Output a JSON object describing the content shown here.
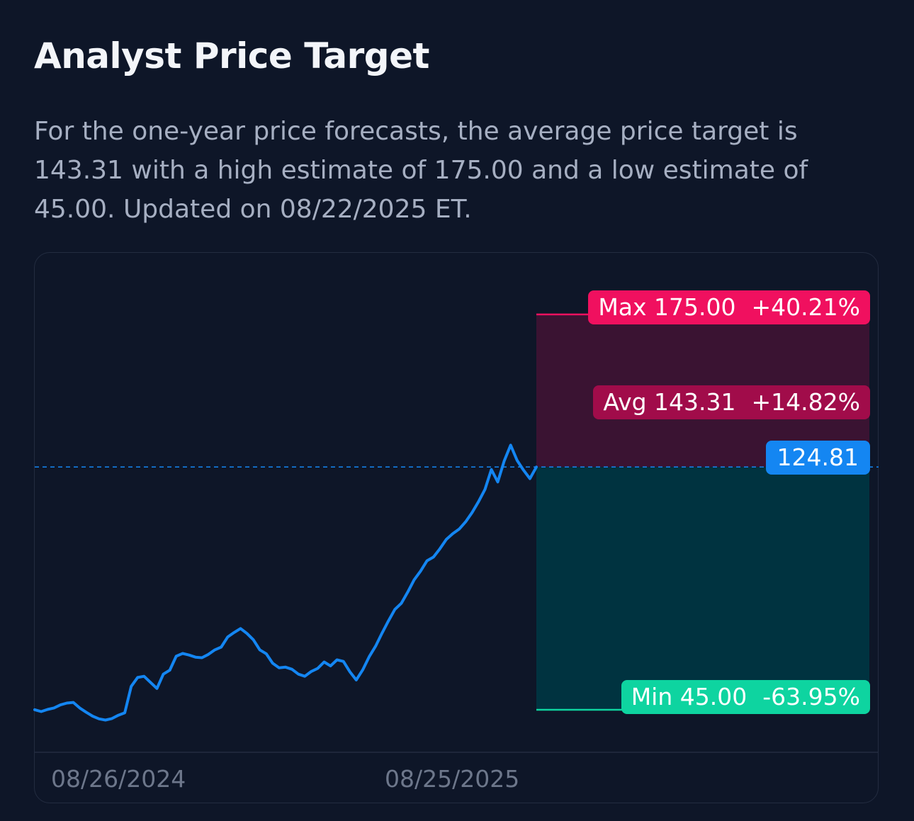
{
  "header": {
    "title": "Analyst Price Target",
    "description": "For the one-year price forecasts, the average price target is 143.31 with a high estimate of 175.00 and a low estimate of 45.00. Updated on 08/22/2025 ET."
  },
  "chart_data": {
    "type": "line",
    "x_ticks": [
      "08/26/2024",
      "08/25/2025"
    ],
    "current_price": "124.81",
    "targets": {
      "max": {
        "label": "Max",
        "value": "175.00",
        "change": "+40.21%"
      },
      "avg": {
        "label": "Avg",
        "value": "143.31",
        "change": "+14.82%"
      },
      "min": {
        "label": "Min",
        "value": "45.00",
        "change": "-63.95%"
      }
    },
    "ylim": [
      38,
      188
    ],
    "series": [
      {
        "values": [
          45.0,
          44.4,
          45.1,
          45.6,
          46.6,
          47.2,
          47.4,
          45.6,
          44.2,
          42.9,
          42.0,
          41.6,
          42.1,
          43.2,
          44.0,
          52.7,
          55.6,
          56.0,
          54.0,
          52.0,
          56.7,
          58.0,
          62.6,
          63.5,
          63.0,
          62.3,
          62.1,
          63.2,
          64.7,
          65.6,
          68.9,
          70.4,
          71.7,
          70.1,
          68.0,
          64.7,
          63.4,
          60.3,
          58.8,
          59.0,
          58.3,
          56.7,
          56.0,
          57.6,
          58.6,
          60.7,
          59.4,
          61.4,
          60.9,
          57.5,
          54.8,
          58.1,
          62.4,
          65.9,
          70.2,
          74.2,
          78.0,
          80.0,
          83.7,
          87.7,
          90.6,
          94.0,
          95.2,
          97.9,
          101.0,
          102.9,
          104.4,
          106.8,
          109.8,
          113.4,
          117.4,
          124.0,
          119.9,
          126.8,
          132.0,
          127.0,
          123.8,
          121.0,
          124.8
        ]
      }
    ]
  }
}
